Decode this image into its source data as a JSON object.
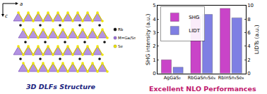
{
  "chart_data": {
    "type": "bar",
    "caption": "Excellent NLO Performances",
    "categories": [
      "AgGaS₂",
      "RbGaSn₂Se₆",
      "RbInSn₃Se₈"
    ],
    "series": [
      {
        "name": "SHG",
        "color": "#c944c8",
        "values": [
          1.0,
          4.2,
          4.8
        ],
        "axis": "y"
      },
      {
        "name": "LIDT",
        "color": "#7f7fe3",
        "values": [
          0.9,
          8.7,
          8.2
        ],
        "axis": "y2"
      }
    ],
    "ylabel": "SHG intensity (a.u.)",
    "y2label": "LIDTs (a.u.)",
    "ylim": [
      0,
      5
    ],
    "yticks": [
      0,
      1,
      2,
      3,
      4,
      5
    ],
    "y2lim": [
      0,
      10
    ],
    "y2ticks": [
      0,
      2,
      4,
      6,
      8,
      10
    ],
    "legend": "upper left",
    "grid": false
  },
  "diagram": {
    "caption": "3D DLFs Structure",
    "axes": [
      "a",
      "c"
    ],
    "labels": [
      "Rb",
      "M=Ga/Sn",
      "Se"
    ]
  }
}
